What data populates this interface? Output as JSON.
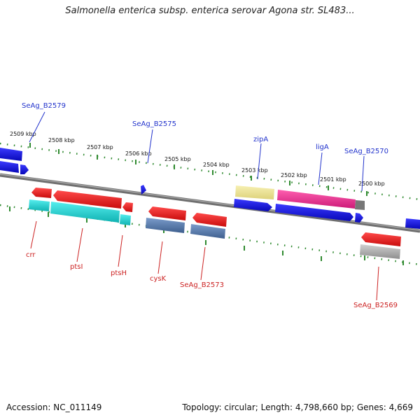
{
  "title": "Salmonella enterica subsp. enterica serovar Agona str. SL483...",
  "footer": {
    "accession": "Accession: NC_011149",
    "summary": "Topology: circular; Length: 4,798,660 bp; Genes: 4,669"
  },
  "ticks": [
    "2509 kbp",
    "2508 kbp",
    "2507 kbp",
    "2506 kbp",
    "2505 kbp",
    "2504 kbp",
    "2503 kbp",
    "2502 kbp",
    "2501 kbp",
    "2500 kbp"
  ],
  "labels": {
    "top": [
      "SeAg_B2579",
      "SeAg_B2575",
      "zipA",
      "ligA",
      "SeAg_B2570"
    ],
    "bottom": [
      "crr",
      "ptsI",
      "ptsH",
      "cysK",
      "SeAg_B2573",
      "SeAg_B2569"
    ]
  },
  "colors": {
    "backbone": "#7a7a7a",
    "tick_track": "#2f8a2f",
    "cds_forward": "#1010e0",
    "cds_reverse": "#ee1111",
    "rna": "#11cccc",
    "gene_a": "#5577aa",
    "gene_b": "#eeee99",
    "gene_c": "#ee2288",
    "gene_d": "#aaaaaa"
  }
}
